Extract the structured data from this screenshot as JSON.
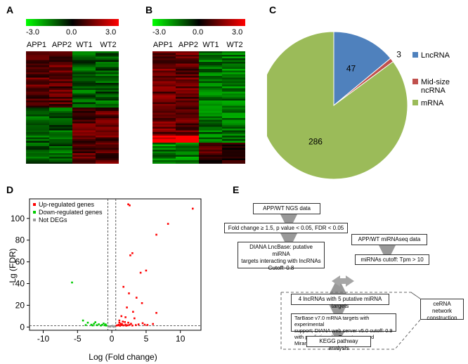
{
  "panels": {
    "a": "A",
    "b": "B",
    "c": "C",
    "d": "D",
    "e": "E"
  },
  "heatmap_scale": {
    "min": "-3.0",
    "mid": "0.0",
    "max": "3.0",
    "colors": {
      "low": "#00ff00",
      "mid": "#000000",
      "high": "#ff0000"
    }
  },
  "heatmap_columns": [
    "APP1",
    "APP2",
    "WT1",
    "WT2"
  ],
  "chart_data": [
    {
      "type": "pie",
      "labels": [
        "LncRNA",
        "Mid-size ncRNA",
        "mRNA"
      ],
      "values": [
        47,
        3,
        286
      ],
      "value_labels": [
        "47",
        "3",
        "286"
      ],
      "colors": [
        "#4f81bd",
        "#c0504d",
        "#9bbb59"
      ],
      "legend_position": "right"
    },
    {
      "type": "scatter",
      "xlabel": "Log (Fold change)",
      "ylabel": "-Lg (FDR)",
      "xlim": [
        -12,
        13
      ],
      "ylim": [
        -3,
        118
      ],
      "xticks": [
        -10,
        -5,
        0,
        5,
        10
      ],
      "yticks": [
        0,
        20,
        40,
        60,
        80,
        100
      ],
      "reference_lines": {
        "x": [
          -0.58,
          0.58
        ],
        "y": [
          1.3
        ]
      },
      "legend_position": "top-left",
      "series": [
        {
          "name": "Up-regulated genes",
          "color": "#ff0000",
          "points": [
            [
              11.8,
              109
            ],
            [
              2.6,
              112
            ],
            [
              2.4,
              113
            ],
            [
              8.2,
              95
            ],
            [
              6.5,
              85
            ],
            [
              3,
              68
            ],
            [
              2.7,
              66
            ],
            [
              5,
              52
            ],
            [
              4.2,
              50
            ],
            [
              1.7,
              37
            ],
            [
              2.5,
              31
            ],
            [
              3.6,
              27
            ],
            [
              4.4,
              22
            ],
            [
              2.2,
              18
            ],
            [
              3.1,
              14
            ],
            [
              6.5,
              13
            ],
            [
              1.4,
              10
            ],
            [
              2,
              9
            ],
            [
              3.3,
              8
            ],
            [
              1.1,
              6
            ],
            [
              1.6,
              5
            ],
            [
              2.4,
              4
            ],
            [
              1.3,
              3
            ],
            [
              4.5,
              3.5
            ],
            [
              1,
              2
            ],
            [
              1.7,
              1.5
            ],
            [
              2.6,
              2
            ],
            [
              3.5,
              1.8
            ],
            [
              1.2,
              1.2
            ],
            [
              0.9,
              1.6
            ],
            [
              1.5,
              2.6
            ],
            [
              2.1,
              1.3
            ],
            [
              2.8,
              3
            ],
            [
              1.9,
              4.6
            ],
            [
              3.9,
              2.4
            ],
            [
              5.2,
              1.9
            ],
            [
              0.7,
              1.4
            ],
            [
              1.4,
              1.8
            ],
            [
              2.3,
              1.6
            ],
            [
              3,
              1.4
            ],
            [
              1.1,
              4
            ],
            [
              2,
              2.2
            ],
            [
              6,
              2.8
            ],
            [
              4.8,
              2.1
            ]
          ]
        },
        {
          "name": "Down-regulated genes",
          "color": "#00cc00",
          "points": [
            [
              -5.8,
              41
            ],
            [
              -4.2,
              6
            ],
            [
              -3.5,
              4
            ],
            [
              -2.6,
              3
            ],
            [
              -1.9,
              2.5
            ],
            [
              -1.4,
              2
            ],
            [
              -1,
              1.6
            ],
            [
              -0.8,
              1.4
            ],
            [
              -2.2,
              1.7
            ],
            [
              -3,
              2.1
            ],
            [
              -1.2,
              3.2
            ],
            [
              -0.9,
              2.4
            ],
            [
              -2.8,
              1.5
            ],
            [
              -1.6,
              1.4
            ],
            [
              -3.8,
              1.8
            ],
            [
              -2.4,
              4.4
            ]
          ]
        },
        {
          "name": "Not DEGs",
          "color": "#999999",
          "points": [
            [
              -0.3,
              0.5
            ],
            [
              0.2,
              0.4
            ],
            [
              0.4,
              0.8
            ],
            [
              -0.5,
              0.9
            ],
            [
              0.1,
              1.1
            ],
            [
              -0.2,
              0.3
            ],
            [
              0.3,
              0.2
            ],
            [
              -0.4,
              0.6
            ]
          ]
        }
      ]
    }
  ],
  "flow": {
    "ngs": "APP/WT NGS data",
    "filter": "Fold change ≥ 1.5, p value < 0.05, FDR < 0.05",
    "diana_lines": [
      "DIANA LncBase: putative miRNA",
      "targets interacting with lncRNAs",
      "Cutoff: 0.8"
    ],
    "mirnaseq": "APP/WT miRNAseq data",
    "mirna_cutoff": "miRNAs cutoff: Tpm > 10",
    "four": "4 lncRNAs with 5 putative miRNA targets",
    "tarbase_lines": [
      "TarBase v7.0 mRNA targets with experimental",
      "support; DIANA web server v5.0 cutoff: 0.9",
      "with predictions by Targetscan and Miranda"
    ],
    "kegg": "KEGG pathway analysis",
    "cerna_lines": [
      "ceRNA network",
      "construction"
    ]
  }
}
